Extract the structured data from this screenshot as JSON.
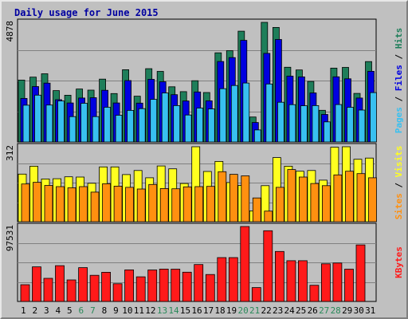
{
  "colors": {
    "background": "#c0c0c0",
    "panel": "#c0c0c0",
    "title": "#0000a0",
    "hits": "#1e7e5a",
    "files": "#0000e0",
    "pages": "#38c0f0",
    "visits": "#ffff20",
    "sites": "#ff9010",
    "kbytes": "#ff1a1a",
    "weekend_label": "#2a8a5a",
    "weekday_label": "#000000"
  },
  "chart_data": {
    "type": "bar",
    "title": "Daily usage for June 2015",
    "categories": [
      "1",
      "2",
      "3",
      "4",
      "5",
      "6",
      "7",
      "8",
      "9",
      "10",
      "11",
      "12",
      "13",
      "14",
      "15",
      "16",
      "17",
      "18",
      "19",
      "20",
      "21",
      "22",
      "23",
      "24",
      "25",
      "26",
      "27",
      "28",
      "29",
      "30",
      "31"
    ],
    "weekend_days": [
      "6",
      "7",
      "13",
      "14",
      "20",
      "21",
      "27",
      "28"
    ],
    "panels": [
      {
        "name": "hits_files_pages",
        "max_label": "4878",
        "ylim": [
          0,
          4878
        ],
        "legend": [
          {
            "text": "Hits",
            "color": "#1e7e5a"
          },
          {
            "text": "Files",
            "color": "#0000e0"
          },
          {
            "text": "Pages",
            "color": "#38c0f0"
          }
        ],
        "separator": " / ",
        "series": [
          {
            "name": "Hits",
            "values": [
              2525,
              2643,
              2780,
              2094,
              1907,
              2160,
              2113,
              2564,
              1975,
              2946,
              1868,
              2989,
              2879,
              2251,
              2052,
              2496,
              2015,
              3637,
              3722,
              4518,
              1019,
              4878,
              4671,
              3048,
              2936,
              2467,
              1290,
              3012,
              3039,
              1979,
              3277
            ]
          },
          {
            "name": "Files",
            "values": [
              1776,
              2260,
              2400,
              1723,
              1591,
              1792,
              1804,
              2106,
              1591,
              2504,
              1585,
              2552,
              2456,
              1929,
              1672,
              2040,
              1677,
              3280,
              3439,
              4142,
              795,
              3614,
              4179,
              2687,
              2653,
              2000,
              1121,
              2657,
              2577,
              1792,
              2880
            ]
          },
          {
            "name": "Pages",
            "values": [
              1498,
              1909,
              1507,
              1673,
              1035,
              1578,
              1035,
              1415,
              1089,
              1289,
              1358,
              1735,
              1996,
              1483,
              1099,
              1383,
              1345,
              2171,
              2302,
              2402,
              490,
              2363,
              1619,
              1522,
              1478,
              1483,
              819,
              1526,
              1414,
              1302,
              2014
            ]
          }
        ]
      },
      {
        "name": "visits_sites",
        "max_label": "312",
        "ylim": [
          0,
          312
        ],
        "legend": [
          {
            "text": "Visits",
            "color": "#ffff20"
          },
          {
            "text": "Sites",
            "color": "#ff9010"
          }
        ],
        "separator": " / ",
        "series": [
          {
            "name": "Visits",
            "values": [
              198,
              231,
              178,
              179,
              187,
              186,
              160,
              228,
              228,
              196,
              213,
              183,
              232,
              220,
              159,
              312,
              209,
              251,
              163,
              151,
              45,
              150,
              267,
              231,
              210,
              213,
              173,
              310,
              312,
              260,
              265
            ]
          },
          {
            "name": "Sites",
            "values": [
              157,
              164,
              151,
              146,
              141,
              146,
              123,
              158,
              148,
              143,
              136,
              155,
              138,
              137,
              145,
              146,
              147,
              208,
              197,
              191,
              99,
              44,
              143,
              217,
              186,
              159,
              150,
              195,
              210,
              200,
              183
            ]
          }
        ]
      },
      {
        "name": "kbytes",
        "max_label": "97531",
        "ylim": [
          0,
          97531
        ],
        "legend": [
          {
            "text": "KBytes",
            "color": "#ff1a1a"
          }
        ],
        "separator": "",
        "series": [
          {
            "name": "KBytes",
            "values": [
              21808,
              45013,
              30089,
              46593,
              27988,
              44012,
              34073,
              38004,
              23029,
              41071,
              32067,
              41004,
              42082,
              42022,
              38081,
              48017,
              35048,
              57039,
              57063,
              97531,
              18096,
              92000,
              65027,
              53003,
              53029,
              21013,
              49000,
              50010,
              42064,
              73568,
              0
            ]
          }
        ]
      }
    ]
  }
}
